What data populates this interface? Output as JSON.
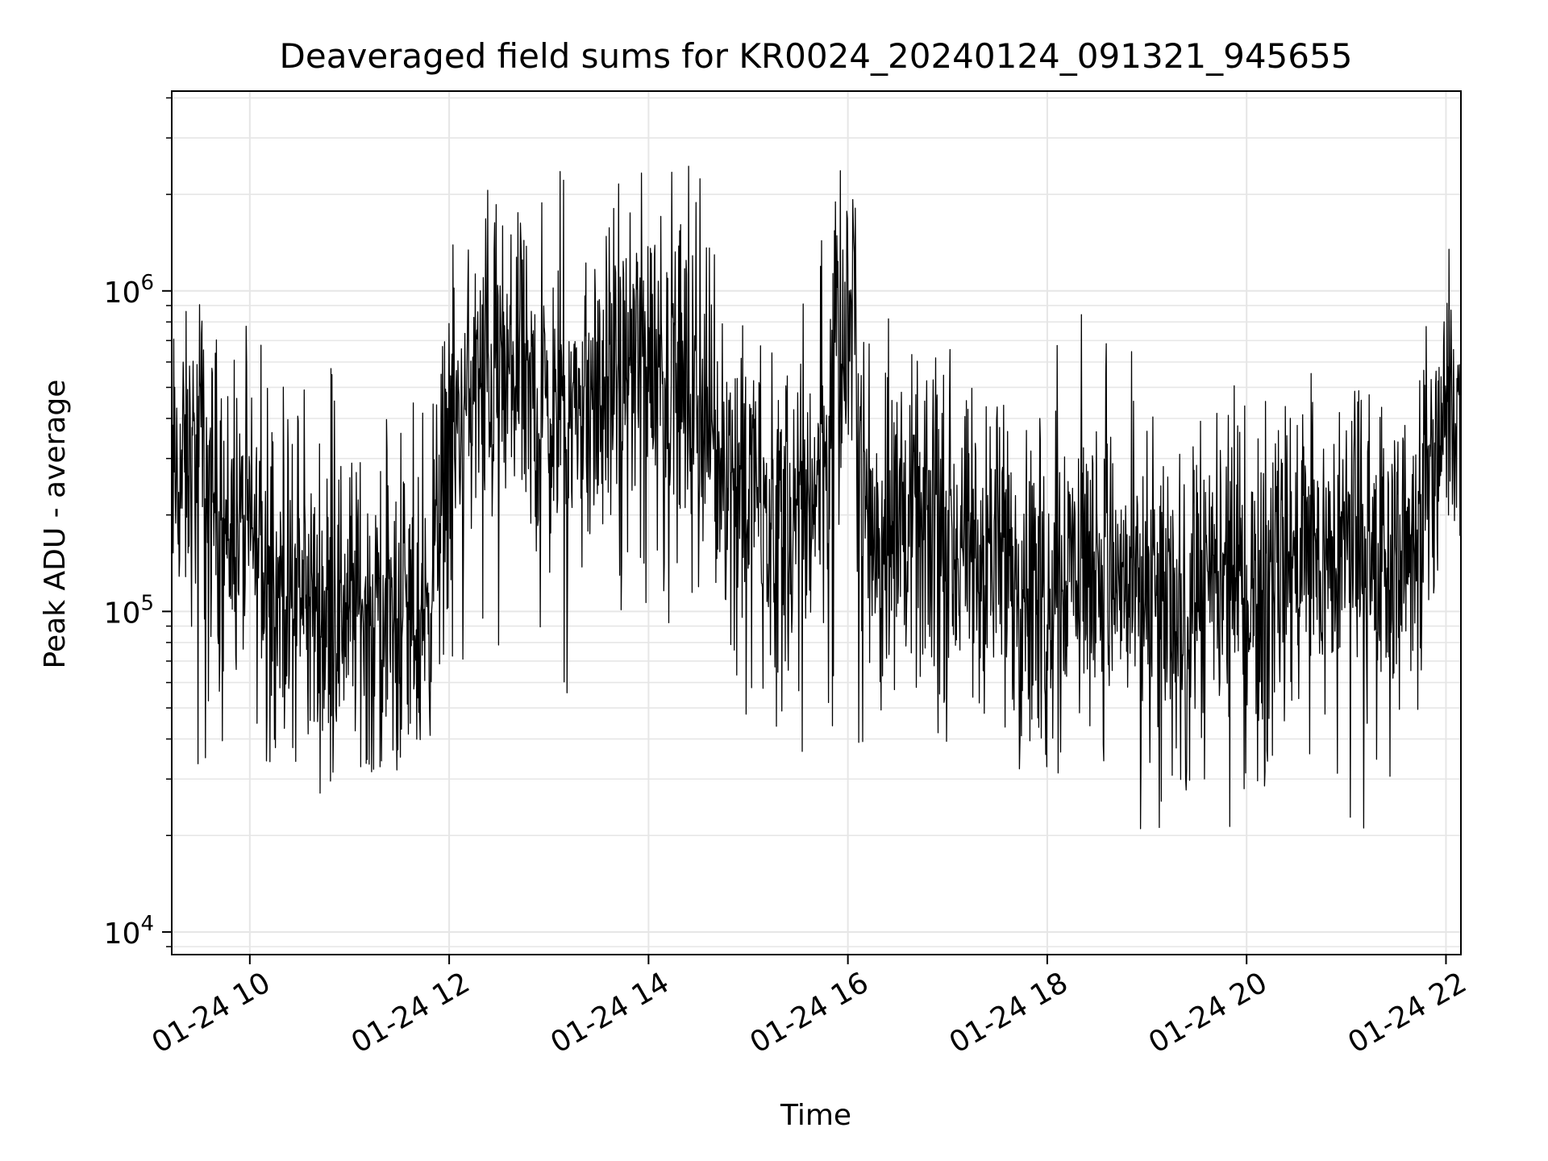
{
  "chart_data": {
    "type": "line",
    "title": "Deaveraged field sums for KR0024_20240124_091321_945655",
    "xlabel": "Time",
    "ylabel": "Peak ADU - average",
    "y_scale": "log",
    "ylim": [
      8500,
      4200000
    ],
    "xlim": [
      "2024-01-24 09:13",
      "2024-01-24 22:09"
    ],
    "grid": true,
    "line_color": "#000000",
    "grid_color": "#e6e6e6",
    "x_ticks": [
      {
        "value": "2024-01-24 10:00",
        "label": "01-24 10"
      },
      {
        "value": "2024-01-24 12:00",
        "label": "01-24 12"
      },
      {
        "value": "2024-01-24 14:00",
        "label": "01-24 14"
      },
      {
        "value": "2024-01-24 16:00",
        "label": "01-24 16"
      },
      {
        "value": "2024-01-24 18:00",
        "label": "01-24 18"
      },
      {
        "value": "2024-01-24 20:00",
        "label": "01-24 20"
      },
      {
        "value": "2024-01-24 22:00",
        "label": "01-24 22"
      }
    ],
    "y_ticks": [
      {
        "value": 10000,
        "base": "10",
        "exp": "4"
      },
      {
        "value": 100000,
        "base": "10",
        "exp": "5"
      },
      {
        "value": 1000000,
        "base": "10",
        "exp": "6"
      }
    ],
    "series": [
      {
        "x": [
          "2024-01-24 09:13",
          "2024-01-24 09:30",
          "2024-01-24 09:45",
          "2024-01-24 10:00",
          "2024-01-24 10:15",
          "2024-01-24 10:30",
          "2024-01-24 10:45",
          "2024-01-24 11:00",
          "2024-01-24 11:15",
          "2024-01-24 11:30",
          "2024-01-24 11:45",
          "2024-01-24 12:00",
          "2024-01-24 12:15",
          "2024-01-24 12:30",
          "2024-01-24 12:45",
          "2024-01-24 13:00",
          "2024-01-24 13:15",
          "2024-01-24 13:30",
          "2024-01-24 13:45",
          "2024-01-24 14:00",
          "2024-01-24 14:15",
          "2024-01-24 14:30",
          "2024-01-24 14:45",
          "2024-01-24 15:00",
          "2024-01-24 15:15",
          "2024-01-24 15:30",
          "2024-01-24 15:45",
          "2024-01-24 16:00",
          "2024-01-24 16:15",
          "2024-01-24 16:30",
          "2024-01-24 16:45",
          "2024-01-24 17:00",
          "2024-01-24 17:15",
          "2024-01-24 17:30",
          "2024-01-24 17:45",
          "2024-01-24 18:00",
          "2024-01-24 18:15",
          "2024-01-24 18:30",
          "2024-01-24 18:45",
          "2024-01-24 19:00",
          "2024-01-24 19:15",
          "2024-01-24 19:30",
          "2024-01-24 19:45",
          "2024-01-24 20:00",
          "2024-01-24 20:15",
          "2024-01-24 20:30",
          "2024-01-24 20:45",
          "2024-01-24 21:00",
          "2024-01-24 21:15",
          "2024-01-24 21:30",
          "2024-01-24 21:45",
          "2024-01-24 22:00",
          "2024-01-24 22:09"
        ],
        "values": [
          250000,
          300000,
          180000,
          170000,
          120000,
          110000,
          100000,
          110000,
          100000,
          95000,
          90000,
          350000,
          500000,
          550000,
          450000,
          400000,
          420000,
          450000,
          600000,
          650000,
          550000,
          400000,
          300000,
          250000,
          200000,
          180000,
          300000,
          700000,
          180000,
          200000,
          170000,
          160000,
          140000,
          150000,
          140000,
          130000,
          150000,
          140000,
          120000,
          110000,
          100000,
          100000,
          120000,
          110000,
          140000,
          150000,
          140000,
          150000,
          130000,
          140000,
          200000,
          400000,
          450000
        ],
        "noise_min": [
          30000,
          25000,
          40000,
          35000,
          25000,
          22000,
          20000,
          18000,
          20000,
          25000,
          30000,
          60000,
          80000,
          60000,
          60000,
          55000,
          55000,
          80000,
          90000,
          100000,
          80000,
          60000,
          40000,
          45000,
          40000,
          35000,
          40000,
          30000,
          35000,
          35000,
          30000,
          28000,
          30000,
          30000,
          30000,
          25000,
          30000,
          30000,
          22000,
          20000,
          20000,
          18000,
          18000,
          20000,
          22000,
          25000,
          22000,
          22000,
          18000,
          25000,
          50000,
          100000,
          150000
        ],
        "noise_max": [
          1300000,
          900000,
          700000,
          1300000,
          600000,
          500000,
          700000,
          500000,
          400000,
          450000,
          500000,
          1500000,
          2500000,
          2000000,
          2000000,
          2700000,
          2200000,
          2500000,
          3000000,
          2500000,
          2500000,
          3300000,
          1000000,
          1000000,
          900000,
          800000,
          1500000,
          3000000,
          900000,
          800000,
          600000,
          700000,
          500000,
          600000,
          400000,
          500000,
          1400000,
          700000,
          800000,
          500000,
          600000,
          400000,
          500000,
          700000,
          400000,
          500000,
          600000,
          600000,
          500000,
          400000,
          800000,
          1700000,
          1000000
        ]
      }
    ]
  }
}
